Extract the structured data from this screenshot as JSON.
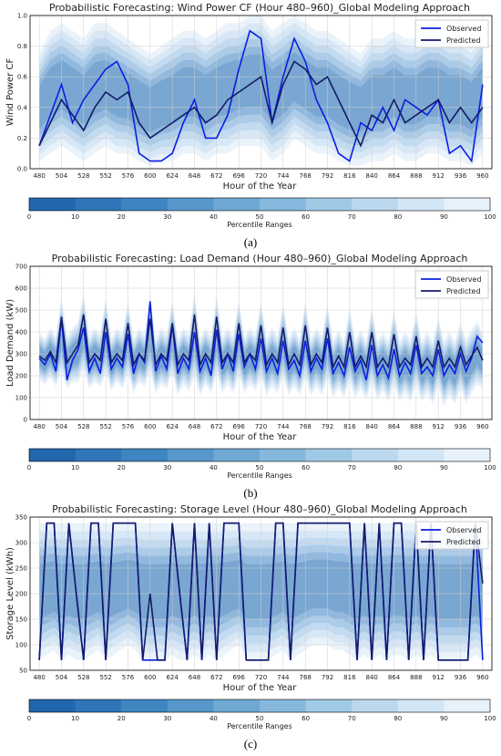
{
  "colors": {
    "observed": "#0b1fe0",
    "predicted": "#131b6b",
    "band_edge": "#f2f6fb",
    "band_core": "#6a9ccb",
    "colorbar": [
      "#2167ae",
      "#2f76b9",
      "#3e86c2",
      "#5797cb",
      "#6ea8d3",
      "#85b8dc",
      "#a0c9e6",
      "#bbd8ee",
      "#d3e6f5",
      "#e7f1fa"
    ]
  },
  "figure_labels": [
    "(a)",
    "(b)",
    "(c)"
  ],
  "colorbar": {
    "label": "Percentile Ranges",
    "ticks": [
      0,
      10,
      20,
      30,
      40,
      50,
      60,
      70,
      80,
      90,
      100
    ]
  },
  "chart_data": [
    {
      "type": "line",
      "title": "Probabilistic Forecasting: Wind Power CF (Hour 480–960)_Global Modeling Approach",
      "xlabel": "Hour of the Year",
      "ylabel": "Wind Power CF",
      "xlim": [
        470,
        970
      ],
      "ylim": [
        0,
        1.0
      ],
      "xticks": [
        480,
        504,
        528,
        552,
        576,
        600,
        624,
        648,
        672,
        696,
        720,
        744,
        768,
        792,
        816,
        840,
        864,
        888,
        912,
        936,
        960
      ],
      "yticks": [
        0.0,
        0.2,
        0.4,
        0.6,
        0.8,
        1.0
      ],
      "ytick_labels": [
        "0.0",
        "0.2",
        "0.4",
        "0.6",
        "0.8",
        "1.0"
      ],
      "legend": "top-right",
      "grid": true,
      "x": [
        480,
        492,
        504,
        516,
        528,
        540,
        552,
        564,
        576,
        588,
        600,
        612,
        624,
        636,
        648,
        660,
        672,
        684,
        696,
        708,
        720,
        732,
        744,
        756,
        768,
        780,
        792,
        804,
        816,
        828,
        840,
        852,
        864,
        876,
        888,
        900,
        912,
        924,
        936,
        948,
        960
      ],
      "series": [
        {
          "name": "Observed",
          "values": [
            0.15,
            0.35,
            0.55,
            0.3,
            0.45,
            0.55,
            0.65,
            0.7,
            0.55,
            0.1,
            0.05,
            0.05,
            0.1,
            0.3,
            0.45,
            0.2,
            0.2,
            0.35,
            0.65,
            0.9,
            0.85,
            0.3,
            0.6,
            0.85,
            0.7,
            0.45,
            0.3,
            0.1,
            0.05,
            0.3,
            0.25,
            0.4,
            0.25,
            0.45,
            0.4,
            0.35,
            0.45,
            0.1,
            0.15,
            0.05,
            0.55
          ]
        },
        {
          "name": "Predicted",
          "values": [
            0.15,
            0.3,
            0.45,
            0.35,
            0.25,
            0.4,
            0.5,
            0.45,
            0.5,
            0.3,
            0.2,
            0.25,
            0.3,
            0.35,
            0.4,
            0.3,
            0.35,
            0.45,
            0.5,
            0.55,
            0.6,
            0.3,
            0.55,
            0.7,
            0.65,
            0.55,
            0.6,
            0.45,
            0.3,
            0.15,
            0.35,
            0.3,
            0.45,
            0.3,
            0.35,
            0.4,
            0.45,
            0.3,
            0.4,
            0.3,
            0.4
          ]
        }
      ],
      "band_lower": [
        0.05,
        0.1,
        0.15,
        0.1,
        0.05,
        0.1,
        0.15,
        0.1,
        0.1,
        0.05,
        0.02,
        0.05,
        0.05,
        0.1,
        0.1,
        0.05,
        0.1,
        0.1,
        0.15,
        0.15,
        0.15,
        0.05,
        0.1,
        0.2,
        0.15,
        0.1,
        0.1,
        0.05,
        0.02,
        0.02,
        0.05,
        0.05,
        0.1,
        0.05,
        0.05,
        0.1,
        0.1,
        0.05,
        0.05,
        0.02,
        0.1
      ],
      "band_upper": [
        0.75,
        0.9,
        0.95,
        0.9,
        0.85,
        0.95,
        0.95,
        0.9,
        0.85,
        0.8,
        0.75,
        0.8,
        0.85,
        0.9,
        0.9,
        0.85,
        0.9,
        0.95,
        0.95,
        1.0,
        1.0,
        0.9,
        0.95,
        1.0,
        0.95,
        0.9,
        0.9,
        0.85,
        0.8,
        0.75,
        0.85,
        0.85,
        0.9,
        0.85,
        0.85,
        0.9,
        0.9,
        0.85,
        0.85,
        0.8,
        0.9
      ]
    },
    {
      "type": "line",
      "title": "Probabilistic Forecasting: Load Demand (Hour 480–960)_Global Modeling Approach",
      "xlabel": "Hour of the Year",
      "ylabel": "Load Demand (kW)",
      "xlim": [
        470,
        970
      ],
      "ylim": [
        0,
        700
      ],
      "xticks": [
        480,
        504,
        528,
        552,
        576,
        600,
        624,
        648,
        672,
        696,
        720,
        744,
        768,
        792,
        816,
        840,
        864,
        888,
        912,
        936,
        960
      ],
      "yticks": [
        0,
        100,
        200,
        300,
        400,
        500,
        600,
        700
      ],
      "ytick_labels": [
        "0",
        "100",
        "200",
        "300",
        "400",
        "500",
        "600",
        "700"
      ],
      "legend": "top-right",
      "grid": true,
      "x": [
        480,
        486,
        492,
        498,
        504,
        510,
        516,
        522,
        528,
        534,
        540,
        546,
        552,
        558,
        564,
        570,
        576,
        582,
        588,
        594,
        600,
        606,
        612,
        618,
        624,
        630,
        636,
        642,
        648,
        654,
        660,
        666,
        672,
        678,
        684,
        690,
        696,
        702,
        708,
        714,
        720,
        726,
        732,
        738,
        744,
        750,
        756,
        762,
        768,
        774,
        780,
        786,
        792,
        798,
        804,
        810,
        816,
        822,
        828,
        834,
        840,
        846,
        852,
        858,
        864,
        870,
        876,
        882,
        888,
        894,
        900,
        906,
        912,
        918,
        924,
        930,
        936,
        942,
        948,
        954,
        960
      ],
      "series": [
        {
          "name": "Observed",
          "values": [
            280,
            250,
            300,
            220,
            460,
            180,
            270,
            320,
            420,
            220,
            280,
            210,
            400,
            230,
            280,
            240,
            390,
            210,
            300,
            260,
            540,
            220,
            290,
            230,
            430,
            210,
            280,
            230,
            400,
            220,
            280,
            200,
            410,
            230,
            300,
            220,
            390,
            240,
            300,
            230,
            370,
            220,
            280,
            210,
            360,
            230,
            270,
            200,
            360,
            220,
            280,
            230,
            370,
            210,
            260,
            200,
            330,
            220,
            270,
            180,
            340,
            200,
            250,
            190,
            320,
            200,
            260,
            210,
            340,
            210,
            240,
            200,
            320,
            200,
            250,
            210,
            300,
            220,
            280,
            380,
            350
          ]
        },
        {
          "name": "Predicted",
          "values": [
            290,
            270,
            310,
            260,
            470,
            260,
            300,
            340,
            480,
            260,
            300,
            270,
            460,
            260,
            300,
            270,
            440,
            250,
            300,
            270,
            460,
            250,
            300,
            270,
            440,
            250,
            300,
            270,
            480,
            250,
            300,
            260,
            470,
            260,
            300,
            260,
            440,
            260,
            300,
            270,
            430,
            250,
            300,
            260,
            420,
            250,
            300,
            250,
            430,
            250,
            300,
            260,
            420,
            240,
            290,
            240,
            400,
            240,
            290,
            240,
            400,
            240,
            280,
            240,
            390,
            240,
            280,
            250,
            380,
            240,
            280,
            240,
            360,
            240,
            280,
            240,
            330,
            250,
            290,
            330,
            270
          ]
        }
      ],
      "band_lower": [
        180,
        160,
        190,
        150,
        220,
        140,
        170,
        170,
        230,
        140,
        170,
        150,
        210,
        130,
        170,
        140,
        210,
        120,
        170,
        150,
        220,
        120,
        160,
        140,
        210,
        110,
        160,
        130,
        200,
        110,
        160,
        120,
        210,
        120,
        160,
        120,
        200,
        120,
        160,
        130,
        190,
        110,
        150,
        120,
        190,
        110,
        150,
        110,
        190,
        110,
        150,
        110,
        180,
        100,
        140,
        100,
        170,
        100,
        140,
        90,
        170,
        90,
        130,
        80,
        160,
        80,
        120,
        80,
        160,
        80,
        120,
        70,
        150,
        60,
        110,
        70,
        140,
        70,
        120,
        160,
        140
      ],
      "band_upper": [
        400,
        370,
        420,
        380,
        560,
        380,
        420,
        450,
        580,
        380,
        420,
        390,
        560,
        370,
        420,
        390,
        540,
        370,
        420,
        390,
        570,
        370,
        420,
        390,
        550,
        370,
        420,
        390,
        580,
        370,
        420,
        380,
        570,
        380,
        420,
        380,
        550,
        380,
        420,
        390,
        540,
        370,
        420,
        380,
        530,
        370,
        420,
        370,
        540,
        370,
        420,
        380,
        530,
        360,
        410,
        360,
        510,
        360,
        410,
        360,
        510,
        360,
        400,
        360,
        500,
        360,
        400,
        370,
        490,
        360,
        400,
        360,
        470,
        360,
        400,
        360,
        440,
        370,
        410,
        450,
        390
      ]
    },
    {
      "type": "line",
      "title": "Probabilistic Forecasting: Storage Level (Hour 480–960)_Global Modeling Approach",
      "xlabel": "Hour of the Year",
      "ylabel": "Storage Level (kWh)",
      "xlim": [
        470,
        970
      ],
      "ylim": [
        50,
        350
      ],
      "xticks": [
        480,
        504,
        528,
        552,
        576,
        600,
        624,
        648,
        672,
        696,
        720,
        744,
        768,
        792,
        816,
        840,
        864,
        888,
        912,
        936,
        960
      ],
      "yticks": [
        50,
        100,
        150,
        200,
        250,
        300,
        350
      ],
      "ytick_labels": [
        "50",
        "100",
        "150",
        "200",
        "250",
        "300",
        "350"
      ],
      "legend": "top-right",
      "grid": true,
      "x": [
        480,
        488,
        496,
        504,
        512,
        520,
        528,
        536,
        544,
        552,
        560,
        568,
        576,
        584,
        592,
        600,
        608,
        616,
        624,
        632,
        640,
        648,
        656,
        664,
        672,
        680,
        688,
        696,
        704,
        712,
        720,
        728,
        736,
        744,
        752,
        760,
        768,
        776,
        784,
        792,
        800,
        808,
        816,
        824,
        832,
        840,
        848,
        856,
        864,
        872,
        880,
        888,
        896,
        904,
        912,
        920,
        928,
        936,
        944,
        952,
        960
      ],
      "series": [
        {
          "name": "Observed",
          "values": [
            70,
            338,
            338,
            70,
            338,
            200,
            70,
            338,
            338,
            70,
            338,
            338,
            338,
            338,
            70,
            70,
            70,
            70,
            338,
            200,
            70,
            338,
            70,
            338,
            70,
            338,
            338,
            338,
            70,
            70,
            70,
            70,
            338,
            338,
            70,
            338,
            338,
            338,
            338,
            338,
            338,
            338,
            338,
            70,
            338,
            70,
            338,
            70,
            338,
            338,
            70,
            338,
            70,
            338,
            70,
            70,
            70,
            70,
            70,
            338,
            70
          ]
        },
        {
          "name": "Predicted",
          "values": [
            70,
            338,
            338,
            70,
            338,
            200,
            70,
            338,
            338,
            70,
            338,
            338,
            338,
            338,
            70,
            200,
            70,
            70,
            338,
            200,
            70,
            338,
            70,
            338,
            70,
            338,
            338,
            338,
            70,
            70,
            70,
            70,
            338,
            338,
            70,
            338,
            338,
            338,
            338,
            338,
            338,
            338,
            338,
            70,
            338,
            70,
            338,
            70,
            338,
            338,
            70,
            338,
            70,
            338,
            70,
            70,
            70,
            70,
            70,
            338,
            220
          ]
        }
      ],
      "band_lower": [
        70,
        80,
        90,
        70,
        80,
        70,
        70,
        80,
        90,
        70,
        80,
        90,
        100,
        90,
        70,
        70,
        70,
        70,
        80,
        70,
        70,
        80,
        70,
        80,
        70,
        80,
        90,
        100,
        70,
        70,
        70,
        70,
        80,
        90,
        70,
        80,
        90,
        100,
        100,
        100,
        90,
        90,
        80,
        70,
        80,
        70,
        80,
        70,
        80,
        80,
        70,
        80,
        70,
        80,
        70,
        70,
        70,
        70,
        70,
        80,
        70
      ],
      "band_upper": [
        338,
        338,
        338,
        338,
        338,
        338,
        338,
        338,
        338,
        338,
        338,
        338,
        338,
        338,
        338,
        338,
        338,
        338,
        338,
        338,
        338,
        338,
        338,
        338,
        338,
        338,
        338,
        338,
        338,
        338,
        338,
        338,
        338,
        338,
        338,
        338,
        338,
        338,
        338,
        338,
        338,
        338,
        338,
        338,
        338,
        338,
        338,
        338,
        338,
        338,
        338,
        338,
        338,
        338,
        338,
        338,
        338,
        338,
        338,
        338,
        338
      ]
    }
  ]
}
